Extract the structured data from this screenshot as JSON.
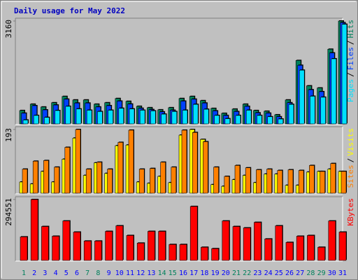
{
  "chart_data": [
    {
      "type": "bar",
      "title": "Daily usage for May 2022",
      "ylim": [
        0,
        3160
      ],
      "yticks": [
        3160
      ],
      "legend_separator": "/",
      "series": [
        {
          "name": "Hits",
          "color": "#00805c",
          "values": [
            411,
            606,
            520,
            650,
            844,
            736,
            736,
            606,
            650,
            780,
            693,
            541,
            498,
            433,
            498,
            780,
            844,
            714,
            476,
            325,
            455,
            606,
            411,
            390,
            281,
            736,
            1948,
            1169,
            1104,
            2294,
            3160
          ]
        },
        {
          "name": "Files",
          "color": "#0040ff",
          "values": [
            330,
            560,
            430,
            580,
            760,
            640,
            640,
            520,
            560,
            700,
            610,
            480,
            440,
            370,
            420,
            700,
            760,
            640,
            400,
            260,
            380,
            540,
            340,
            330,
            220,
            650,
            1800,
            1050,
            990,
            2180,
            3110
          ]
        },
        {
          "name": "Pages",
          "color": "#00e0ff",
          "values": [
            120,
            260,
            200,
            410,
            540,
            460,
            420,
            380,
            420,
            480,
            460,
            420,
            400,
            300,
            380,
            420,
            600,
            450,
            260,
            160,
            260,
            420,
            260,
            220,
            150,
            600,
            1650,
            850,
            820,
            2000,
            3060
          ]
        }
      ]
    },
    {
      "type": "bar",
      "ylim": [
        0,
        193
      ],
      "yticks": [
        193
      ],
      "legend_separator": "/",
      "series": [
        {
          "name": "Visits",
          "color": "#ffff00",
          "values": [
            34,
            28,
            66,
            34,
            103,
            167,
            54,
            92,
            60,
            144,
            146,
            34,
            30,
            51,
            32,
            176,
            193,
            163,
            26,
            21,
            41,
            54,
            32,
            58,
            58,
            24,
            24,
            64,
            66,
            73,
            66
          ]
        },
        {
          "name": "Sites",
          "color": "#ff8000",
          "values": [
            73,
            97,
            99,
            79,
            139,
            193,
            73,
            94,
            73,
            154,
            191,
            73,
            75,
            94,
            79,
            191,
            184,
            156,
            79,
            51,
            84,
            77,
            71,
            73,
            69,
            71,
            69,
            84,
            66,
            90,
            66
          ]
        }
      ]
    },
    {
      "type": "bar",
      "ylim": [
        0,
        294551
      ],
      "yticks": [
        294551
      ],
      "categories": [
        "1",
        "2",
        "3",
        "4",
        "5",
        "6",
        "7",
        "8",
        "9",
        "10",
        "11",
        "12",
        "13",
        "14",
        "15",
        "16",
        "17",
        "18",
        "19",
        "20",
        "21",
        "22",
        "23",
        "24",
        "25",
        "26",
        "27",
        "28",
        "29",
        "30",
        "31"
      ],
      "category_colors": [
        "#00805c",
        "#0000ff",
        "#0000ff",
        "#0000ff",
        "#0000ff",
        "#0000ff",
        "#00805c",
        "#00805c",
        "#0000ff",
        "#0000ff",
        "#0000ff",
        "#0000ff",
        "#0000ff",
        "#00805c",
        "#00805c",
        "#0000ff",
        "#0000ff",
        "#0000ff",
        "#0000ff",
        "#0000ff",
        "#00805c",
        "#00805c",
        "#0000ff",
        "#0000ff",
        "#0000ff",
        "#0000ff",
        "#0000ff",
        "#00805c",
        "#00805c",
        "#0000ff",
        "#0000ff"
      ],
      "series": [
        {
          "name": "KBytes",
          "color": "#ff0000",
          "values": [
            113800,
            294551,
            164000,
            117000,
            190800,
            137000,
            93700,
            93700,
            140500,
            167400,
            120500,
            83700,
            140500,
            140500,
            77000,
            77000,
            261000,
            63600,
            56900,
            190800,
            164000,
            157300,
            184100,
            103800,
            167400,
            87000,
            117000,
            120500,
            63600,
            190800,
            137000
          ]
        }
      ]
    }
  ]
}
